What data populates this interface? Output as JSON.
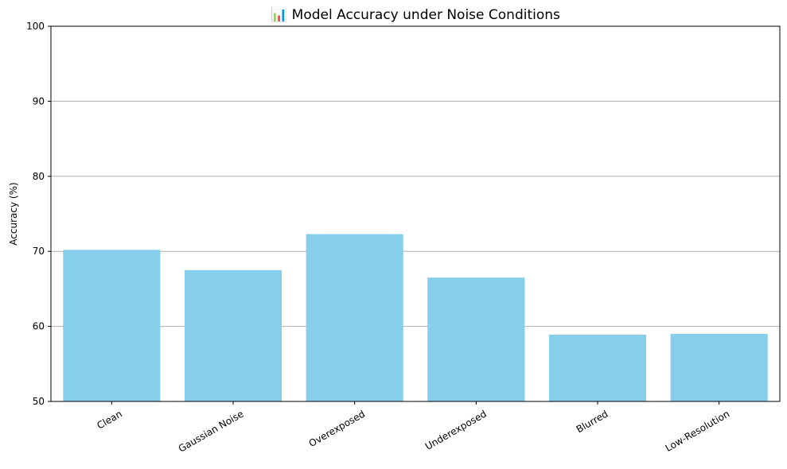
{
  "chart_data": {
    "type": "bar",
    "title": "📊 Model Accuracy under Noise Conditions",
    "xlabel": "",
    "ylabel": "Accuracy (%)",
    "categories": [
      "Clean",
      "Gaussian Noise",
      "Overexposed",
      "Underexposed",
      "Blurred",
      "Low-Resolution"
    ],
    "values": [
      70.2,
      67.5,
      72.3,
      66.5,
      58.9,
      59.0
    ],
    "ylim": [
      50,
      100
    ],
    "yticks": [
      50,
      60,
      70,
      80,
      90,
      100
    ],
    "grid": "y-axis",
    "bar_color": "#87CEEB"
  }
}
